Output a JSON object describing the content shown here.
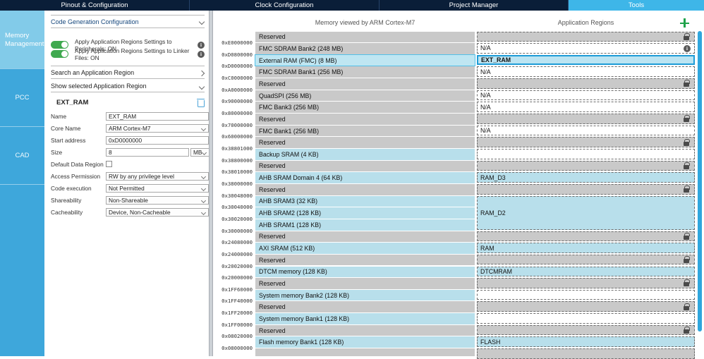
{
  "tabs": {
    "items": [
      {
        "label": "Pinout & Configuration",
        "active": false
      },
      {
        "label": "Clock Configuration",
        "active": false
      },
      {
        "label": "Project Manager",
        "active": false
      },
      {
        "label": "Tools",
        "active": true
      }
    ]
  },
  "sidebar": {
    "items": [
      {
        "label": "Memory Management",
        "active": true
      },
      {
        "label": "PCC",
        "active": false
      },
      {
        "label": "CAD",
        "active": false
      }
    ]
  },
  "config_panel": {
    "section_title": "Code Generation Configuration",
    "toggles": [
      {
        "label": "Apply Application Regions Settings to Peripherals: ON",
        "state": "on"
      },
      {
        "label": "Apply Application Regions Settings to Linker Files: ON",
        "state": "on"
      }
    ],
    "search_section": "Search an Application Region",
    "show_section": "Show selected Application Region",
    "region_title": "EXT_RAM",
    "fields": {
      "name": {
        "label": "Name",
        "value": "EXT_RAM"
      },
      "core": {
        "label": "Core Name",
        "value": "ARM Cortex-M7"
      },
      "start": {
        "label": "Start address",
        "value": "0xD0000000"
      },
      "size": {
        "label": "Size",
        "value": "8",
        "unit": "MB"
      },
      "default": {
        "label": "Default Data Region",
        "checked": false
      },
      "access": {
        "label": "Access Permission",
        "value": "RW by any privilege level"
      },
      "exec": {
        "label": "Code execution",
        "value": "Not Permitted"
      },
      "share": {
        "label": "Shareability",
        "value": "Non-Shareable"
      },
      "cache": {
        "label": "Cacheability",
        "value": "Device, Non-Cacheable"
      }
    }
  },
  "memory_map": {
    "col1_header": "Memory viewed by ARM Cortex-M7",
    "col2_header": "Application Regions",
    "rows": [
      {
        "addr": "0xE0000000",
        "label": "Reserved",
        "mem": "gray",
        "app": {
          "kind": "locked"
        }
      },
      {
        "addr": "0xD0800000",
        "label": "FMC SDRAM Bank2 (248 MB)",
        "mem": "gray",
        "app": {
          "kind": "na-info",
          "text": "N/A"
        }
      },
      {
        "addr": "0xD0000000",
        "label": "External RAM (FMC) (8 MB)",
        "mem": "selected",
        "app": {
          "kind": "selected",
          "text": "EXT_RAM"
        }
      },
      {
        "addr": "0xC0000000",
        "label": "FMC SDRAM Bank1 (256 MB)",
        "mem": "gray",
        "app": {
          "kind": "na",
          "text": "N/A"
        }
      },
      {
        "addr": "0xA0000000",
        "label": "Reserved",
        "mem": "gray",
        "app": {
          "kind": "locked"
        }
      },
      {
        "addr": "0x90000000",
        "label": "QuadSPI (256 MB)",
        "mem": "gray",
        "app": {
          "kind": "na",
          "text": "N/A"
        }
      },
      {
        "addr": "0x80000000",
        "label": "FMC Bank3 (256 MB)",
        "mem": "gray",
        "app": {
          "kind": "na",
          "text": "N/A"
        }
      },
      {
        "addr": "0x70000000",
        "label": "Reserved",
        "mem": "gray",
        "app": {
          "kind": "locked"
        }
      },
      {
        "addr": "0x60000000",
        "label": "FMC Bank1 (256 MB)",
        "mem": "gray",
        "app": {
          "kind": "na",
          "text": "N/A"
        }
      },
      {
        "addr": "0x38801000",
        "label": "Reserved",
        "mem": "gray",
        "app": {
          "kind": "locked"
        }
      },
      {
        "addr": "0x38800000",
        "label": "Backup SRAM (4 KB)",
        "mem": "blue",
        "app": {
          "kind": "empty"
        }
      },
      {
        "addr": "0x38010000",
        "label": "Reserved",
        "mem": "gray",
        "app": {
          "kind": "locked"
        }
      },
      {
        "addr": "0x38000000",
        "label": "AHB SRAM Domain 4 (64 KB)",
        "mem": "blue",
        "app": {
          "kind": "region",
          "text": "RAM_D3"
        }
      },
      {
        "addr": "0x30048000",
        "label": "Reserved",
        "mem": "gray",
        "app": {
          "kind": "locked"
        }
      },
      {
        "addr": "0x30040000",
        "label": "AHB SRAM3 (32 KB)",
        "mem": "blue",
        "app": {
          "kind": "region",
          "text": "RAM_D2",
          "span": 3
        }
      },
      {
        "addr": "0x30020000",
        "label": "AHB SRAM2 (128 KB)",
        "mem": "blue",
        "app": null
      },
      {
        "addr": "0x30000000",
        "label": "AHB SRAM1 (128 KB)",
        "mem": "blue",
        "app": null
      },
      {
        "addr": "0x24080000",
        "label": "Reserved",
        "mem": "gray",
        "app": {
          "kind": "locked"
        }
      },
      {
        "addr": "0x24000000",
        "label": "AXI SRAM (512 KB)",
        "mem": "blue",
        "app": {
          "kind": "region",
          "text": "RAM"
        }
      },
      {
        "addr": "0x20020000",
        "label": "Reserved",
        "mem": "gray",
        "app": {
          "kind": "locked"
        }
      },
      {
        "addr": "0x20000000",
        "label": "DTCM memory (128 KB)",
        "mem": "blue",
        "app": {
          "kind": "region",
          "text": "DTCMRAM"
        }
      },
      {
        "addr": "0x1FF60000",
        "label": "Reserved",
        "mem": "gray",
        "app": {
          "kind": "locked"
        }
      },
      {
        "addr": "0x1FF40000",
        "label": "System memory Bank2 (128 KB)",
        "mem": "blue",
        "app": {
          "kind": "empty"
        }
      },
      {
        "addr": "0x1FF20000",
        "label": "Reserved",
        "mem": "gray",
        "app": {
          "kind": "locked"
        }
      },
      {
        "addr": "0x1FF00000",
        "label": "System memory Bank1 (128 KB)",
        "mem": "blue",
        "app": {
          "kind": "empty"
        }
      },
      {
        "addr": "0x08020000",
        "label": "Reserved",
        "mem": "gray",
        "app": {
          "kind": "locked"
        }
      },
      {
        "addr": "0x08000000",
        "label": "Flash memory Bank1 (128 KB)",
        "mem": "blue",
        "app": {
          "kind": "region",
          "text": "FLASH"
        }
      }
    ],
    "colors": {
      "reserved_gray": "#c9c9c9",
      "memory_blue": "#b8dfeb",
      "selected_border": "#1e9cd7",
      "accent_blue": "#3eb6e8",
      "add_green": "#1fa24a"
    }
  }
}
